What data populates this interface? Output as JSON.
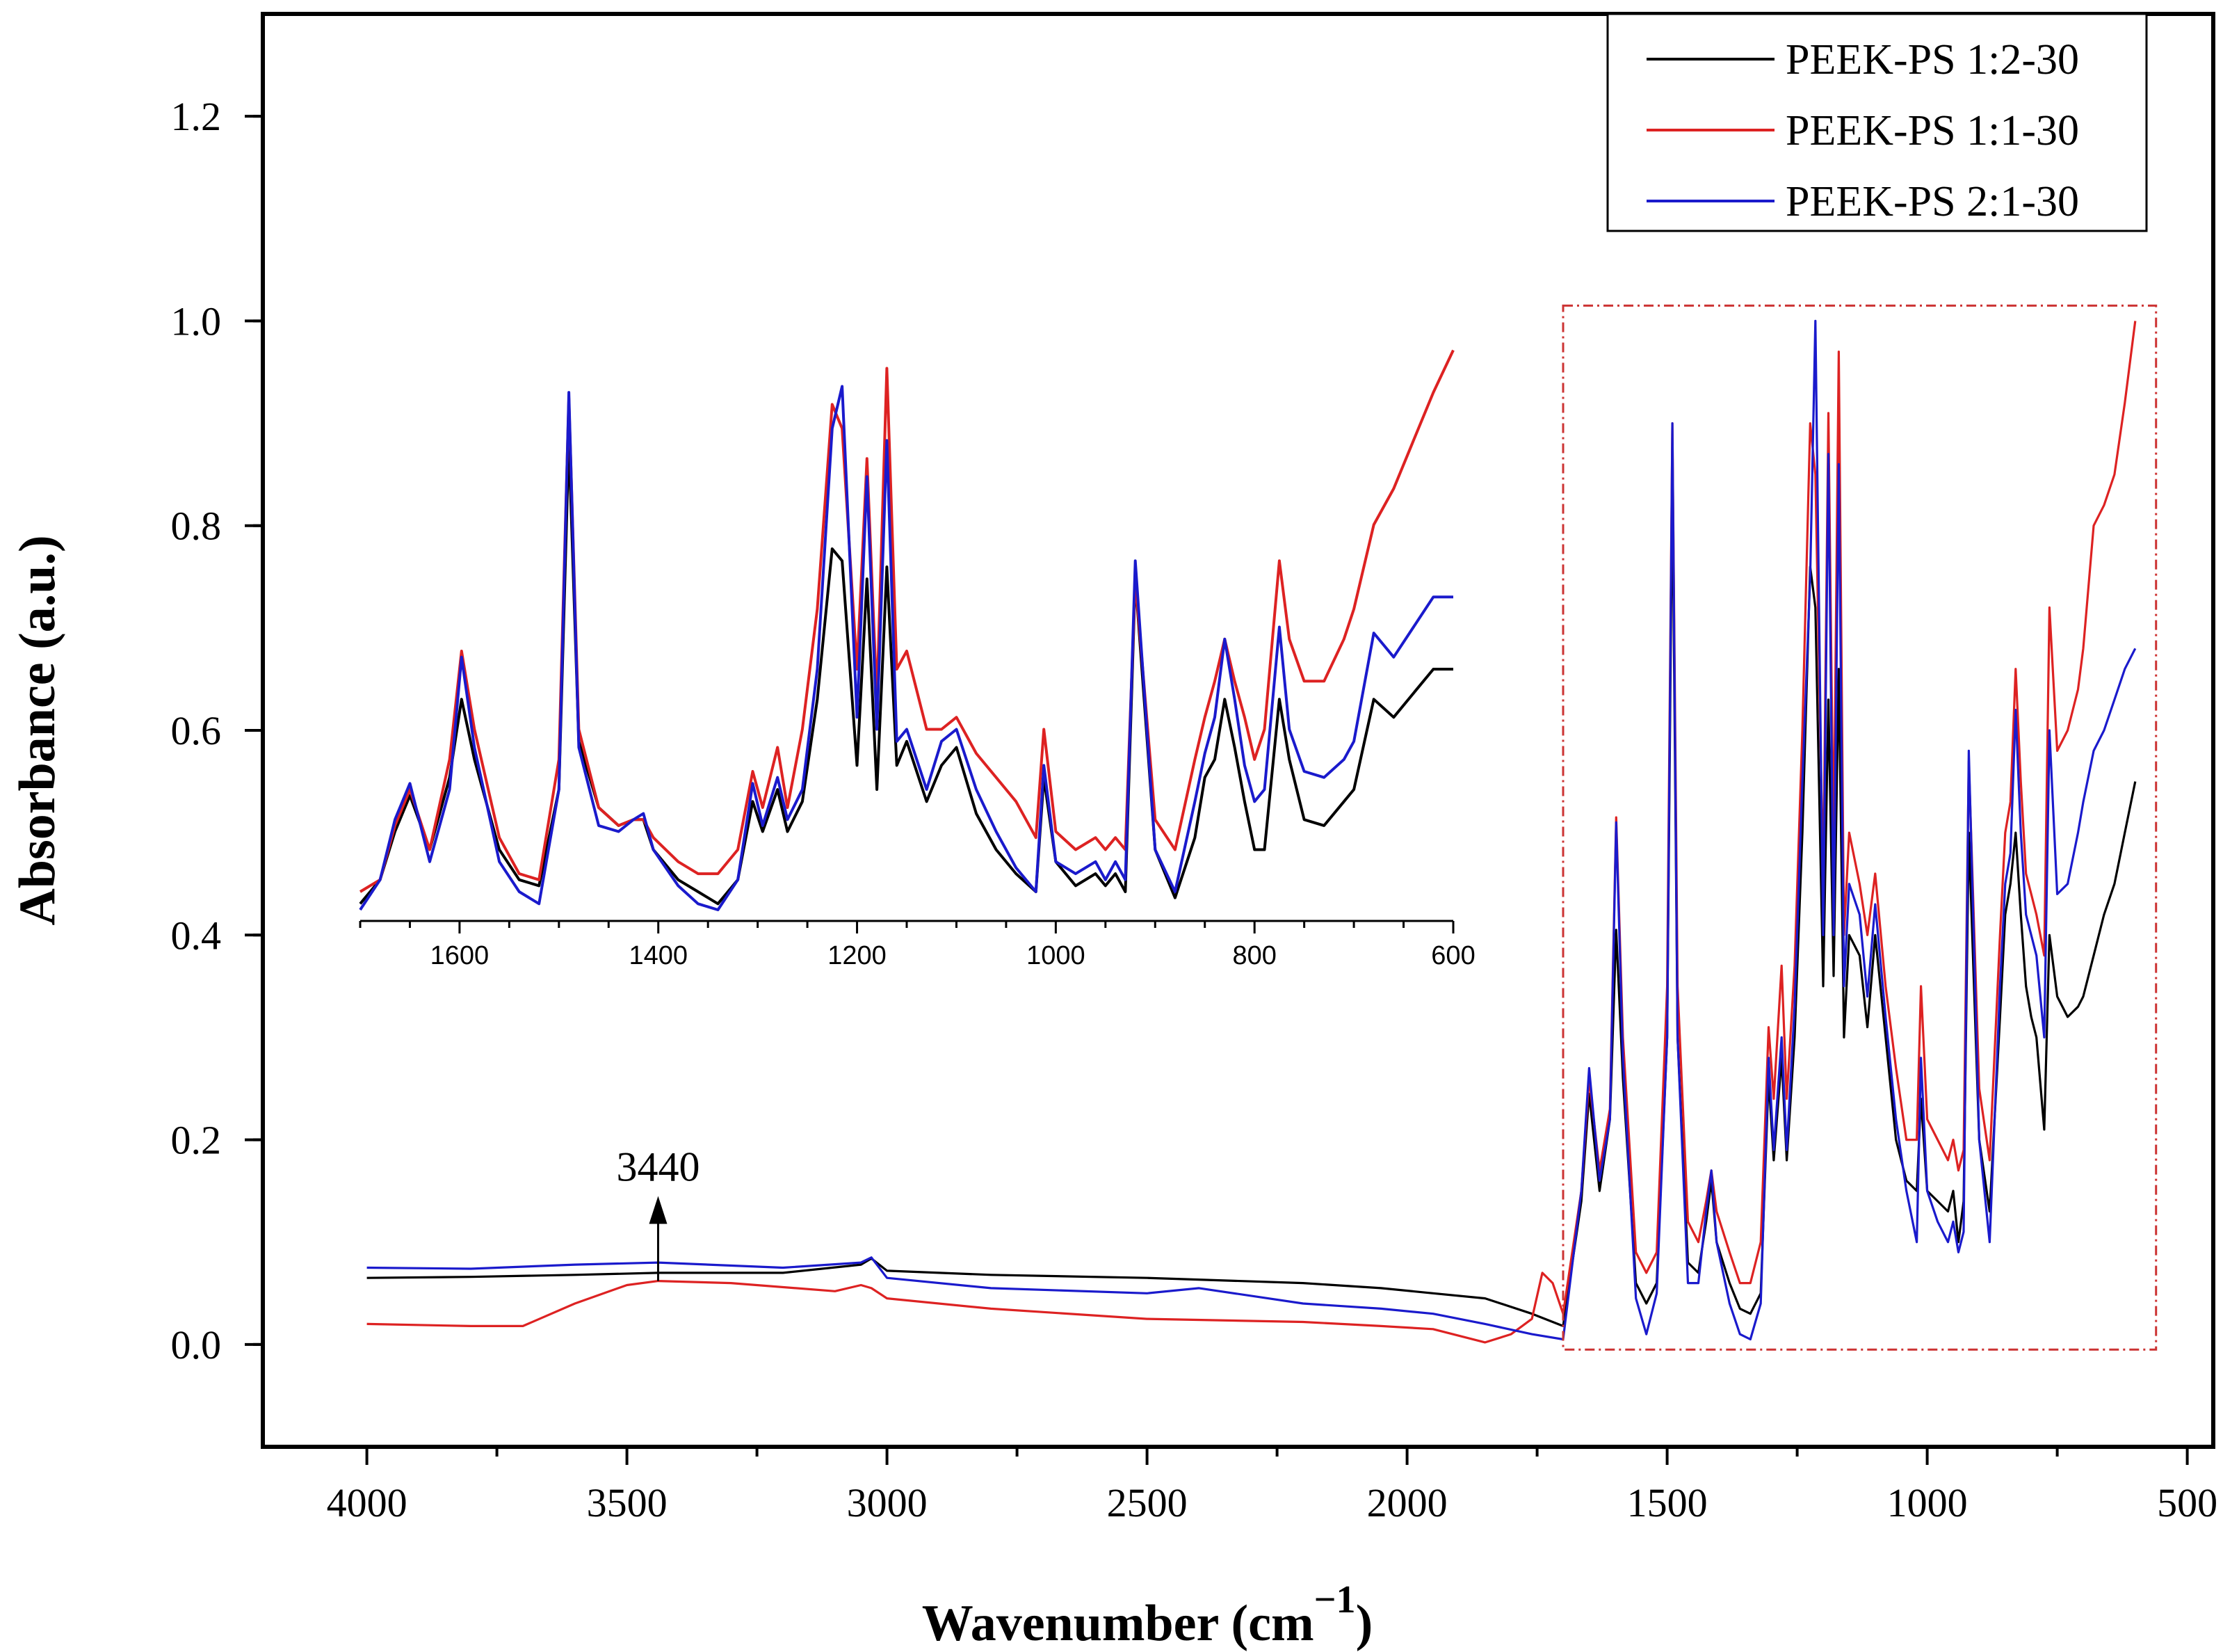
{
  "chart_data": {
    "type": "line",
    "title": "",
    "xlabel": "Wavenumber (cm",
    "xlabel_exp": "−1",
    "xlabel_close": ")",
    "ylabel": "Absorbance (a.u.)",
    "xlim": [
      4200,
      450
    ],
    "ylim": [
      -0.1,
      1.3
    ],
    "x_ticks": [
      4000,
      3500,
      3000,
      2500,
      2000,
      1500,
      1000,
      500
    ],
    "y_ticks": [
      0.0,
      0.2,
      0.4,
      0.6,
      0.8,
      1.0,
      1.2
    ],
    "x_tick_labels": [
      "4000",
      "3500",
      "3000",
      "2500",
      "2000",
      "1500",
      "1000",
      "500"
    ],
    "y_tick_labels": [
      "0.0",
      "0.2",
      "0.4",
      "0.6",
      "0.8",
      "1.0",
      "1.2"
    ],
    "legend_position": "top-right",
    "highlight_region": {
      "x": [
        1700,
        560
      ],
      "y": [
        -0.005,
        1.015
      ],
      "color": "#cc3333"
    },
    "annotation": {
      "label": "3440",
      "x": 3440,
      "y_from": 0.062,
      "y_to": 0.145
    },
    "series": [
      {
        "name": "PEEK-PS  1:2-30",
        "color": "#000000",
        "x": [
          4000,
          3800,
          3600,
          3440,
          3200,
          3050,
          3030,
          3000,
          2800,
          2500,
          2200,
          2050,
          1950,
          1850,
          1760,
          1700,
          1665,
          1650,
          1630,
          1610,
          1598,
          1585,
          1560,
          1540,
          1520,
          1500,
          1490,
          1480,
          1460,
          1440,
          1425,
          1415,
          1405,
          1380,
          1360,
          1340,
          1320,
          1305,
          1295,
          1280,
          1270,
          1255,
          1240,
          1225,
          1215,
          1200,
          1190,
          1180,
          1170,
          1160,
          1150,
          1130,
          1115,
          1100,
          1080,
          1060,
          1040,
          1020,
          1012,
          1000,
          980,
          960,
          950,
          940,
          930,
          920,
          900,
          880,
          860,
          850,
          840,
          830,
          820,
          810,
          800,
          790,
          775,
          765,
          750,
          730,
          710,
          700,
          680,
          660,
          640,
          620,
          600
        ],
        "y": [
          0.065,
          0.066,
          0.068,
          0.07,
          0.07,
          0.078,
          0.084,
          0.072,
          0.068,
          0.065,
          0.06,
          0.055,
          0.05,
          0.045,
          0.03,
          0.018,
          0.14,
          0.245,
          0.15,
          0.22,
          0.405,
          0.26,
          0.06,
          0.04,
          0.06,
          0.3,
          0.85,
          0.3,
          0.08,
          0.07,
          0.12,
          0.16,
          0.1,
          0.06,
          0.035,
          0.03,
          0.05,
          0.26,
          0.18,
          0.28,
          0.18,
          0.3,
          0.5,
          0.76,
          0.72,
          0.35,
          0.63,
          0.36,
          0.66,
          0.3,
          0.4,
          0.38,
          0.31,
          0.4,
          0.3,
          0.2,
          0.16,
          0.15,
          0.24,
          0.15,
          0.14,
          0.13,
          0.15,
          0.1,
          0.14,
          0.5,
          0.2,
          0.13,
          0.32,
          0.42,
          0.45,
          0.5,
          0.42,
          0.35,
          0.32,
          0.3,
          0.21,
          0.4,
          0.34,
          0.32,
          0.33,
          0.34,
          0.38,
          0.42,
          0.45,
          0.5,
          0.55
        ]
      },
      {
        "name": "PEEK-PS  1:1-30",
        "color": "#dd2222",
        "x": [
          4000,
          3800,
          3700,
          3600,
          3500,
          3440,
          3300,
          3100,
          3050,
          3030,
          3000,
          2800,
          2500,
          2200,
          2050,
          1950,
          1850,
          1800,
          1760,
          1740,
          1720,
          1700,
          1665,
          1650,
          1630,
          1610,
          1598,
          1585,
          1560,
          1540,
          1520,
          1500,
          1490,
          1480,
          1460,
          1440,
          1425,
          1415,
          1405,
          1380,
          1360,
          1340,
          1320,
          1305,
          1295,
          1280,
          1270,
          1255,
          1240,
          1225,
          1215,
          1200,
          1190,
          1180,
          1170,
          1160,
          1150,
          1130,
          1115,
          1100,
          1080,
          1060,
          1040,
          1020,
          1012,
          1000,
          980,
          960,
          950,
          940,
          930,
          920,
          900,
          880,
          860,
          850,
          840,
          830,
          820,
          810,
          800,
          790,
          775,
          765,
          750,
          730,
          710,
          700,
          680,
          660,
          640,
          620,
          600
        ],
        "y": [
          0.02,
          0.018,
          0.018,
          0.04,
          0.058,
          0.062,
          0.06,
          0.052,
          0.058,
          0.055,
          0.045,
          0.035,
          0.025,
          0.022,
          0.018,
          0.015,
          0.002,
          0.01,
          0.025,
          0.07,
          0.06,
          0.03,
          0.15,
          0.26,
          0.17,
          0.23,
          0.515,
          0.3,
          0.09,
          0.07,
          0.09,
          0.35,
          0.9,
          0.35,
          0.12,
          0.1,
          0.14,
          0.17,
          0.13,
          0.09,
          0.06,
          0.06,
          0.1,
          0.31,
          0.24,
          0.37,
          0.24,
          0.37,
          0.6,
          0.9,
          0.85,
          0.45,
          0.91,
          0.48,
          0.97,
          0.4,
          0.5,
          0.45,
          0.4,
          0.46,
          0.35,
          0.27,
          0.2,
          0.2,
          0.35,
          0.22,
          0.2,
          0.18,
          0.2,
          0.17,
          0.19,
          0.57,
          0.25,
          0.18,
          0.4,
          0.5,
          0.53,
          0.66,
          0.55,
          0.46,
          0.44,
          0.42,
          0.38,
          0.72,
          0.58,
          0.6,
          0.64,
          0.68,
          0.8,
          0.82,
          0.85,
          0.92,
          1.0
        ]
      },
      {
        "name": "PEEK-PS  2:1-30",
        "color": "#1a1acc",
        "x": [
          4000,
          3800,
          3600,
          3440,
          3200,
          3050,
          3030,
          3000,
          2800,
          2500,
          2400,
          2200,
          2050,
          1950,
          1850,
          1760,
          1700,
          1665,
          1650,
          1630,
          1610,
          1598,
          1585,
          1560,
          1540,
          1520,
          1500,
          1490,
          1480,
          1460,
          1440,
          1425,
          1415,
          1405,
          1380,
          1360,
          1340,
          1320,
          1305,
          1295,
          1280,
          1270,
          1255,
          1240,
          1225,
          1215,
          1200,
          1190,
          1180,
          1170,
          1160,
          1150,
          1130,
          1115,
          1100,
          1080,
          1060,
          1040,
          1020,
          1012,
          1000,
          980,
          960,
          950,
          940,
          930,
          920,
          900,
          880,
          860,
          850,
          840,
          830,
          820,
          810,
          800,
          790,
          775,
          765,
          750,
          730,
          710,
          700,
          680,
          660,
          640,
          620,
          600
        ],
        "y": [
          0.075,
          0.074,
          0.078,
          0.08,
          0.075,
          0.08,
          0.085,
          0.065,
          0.055,
          0.05,
          0.055,
          0.04,
          0.035,
          0.03,
          0.02,
          0.01,
          0.005,
          0.15,
          0.27,
          0.16,
          0.22,
          0.51,
          0.28,
          0.045,
          0.01,
          0.05,
          0.3,
          0.9,
          0.3,
          0.06,
          0.06,
          0.13,
          0.17,
          0.1,
          0.04,
          0.01,
          0.005,
          0.04,
          0.28,
          0.19,
          0.3,
          0.19,
          0.33,
          0.55,
          0.75,
          1.0,
          0.4,
          0.87,
          0.4,
          0.86,
          0.35,
          0.45,
          0.42,
          0.34,
          0.43,
          0.32,
          0.22,
          0.15,
          0.1,
          0.28,
          0.15,
          0.12,
          0.1,
          0.12,
          0.09,
          0.11,
          0.58,
          0.2,
          0.1,
          0.35,
          0.45,
          0.48,
          0.62,
          0.5,
          0.42,
          0.4,
          0.38,
          0.3,
          0.6,
          0.44,
          0.45,
          0.5,
          0.53,
          0.58,
          0.6,
          0.63,
          0.66,
          0.68
        ]
      }
    ],
    "inset": {
      "type": "line",
      "xlim": [
        1700,
        600
      ],
      "ylim": [
        0,
        1.2
      ],
      "x_ticks": [
        1600,
        1400,
        1200,
        1000,
        800,
        600
      ],
      "x_tick_labels": [
        "1600",
        "1400",
        "1200",
        "1000",
        "800",
        "600"
      ],
      "series": [
        {
          "name": "PEEK-PS  1:2-30",
          "color": "#000000",
          "x": [
            1700,
            1680,
            1665,
            1650,
            1630,
            1610,
            1598,
            1585,
            1560,
            1540,
            1520,
            1500,
            1490,
            1480,
            1460,
            1440,
            1425,
            1415,
            1405,
            1380,
            1360,
            1340,
            1320,
            1305,
            1295,
            1280,
            1270,
            1255,
            1240,
            1225,
            1215,
            1200,
            1190,
            1180,
            1170,
            1160,
            1150,
            1130,
            1115,
            1100,
            1080,
            1060,
            1040,
            1020,
            1012,
            1000,
            980,
            960,
            950,
            940,
            930,
            920,
            900,
            880,
            860,
            850,
            840,
            830,
            820,
            810,
            800,
            790,
            775,
            765,
            750,
            730,
            710,
            700,
            680,
            660,
            640,
            620,
            600
          ],
          "y": [
            0.01,
            0.05,
            0.13,
            0.19,
            0.1,
            0.22,
            0.35,
            0.25,
            0.1,
            0.05,
            0.04,
            0.2,
            0.78,
            0.28,
            0.17,
            0.14,
            0.15,
            0.15,
            0.1,
            0.05,
            0.03,
            0.01,
            0.05,
            0.18,
            0.13,
            0.2,
            0.13,
            0.18,
            0.35,
            0.6,
            0.58,
            0.24,
            0.55,
            0.2,
            0.57,
            0.24,
            0.28,
            0.18,
            0.24,
            0.27,
            0.16,
            0.1,
            0.06,
            0.03,
            0.22,
            0.08,
            0.04,
            0.06,
            0.04,
            0.06,
            0.03,
            0.55,
            0.1,
            0.02,
            0.12,
            0.22,
            0.25,
            0.35,
            0.27,
            0.18,
            0.1,
            0.1,
            0.35,
            0.25,
            0.15,
            0.14,
            0.18,
            0.2,
            0.35,
            0.32,
            0.36,
            0.4,
            0.4
          ]
        },
        {
          "name": "PEEK-PS  1:1-30",
          "color": "#dd2222",
          "x": [
            1700,
            1680,
            1665,
            1650,
            1630,
            1610,
            1598,
            1585,
            1560,
            1540,
            1520,
            1500,
            1490,
            1480,
            1460,
            1440,
            1425,
            1415,
            1405,
            1380,
            1360,
            1340,
            1320,
            1305,
            1295,
            1280,
            1270,
            1255,
            1240,
            1225,
            1215,
            1200,
            1190,
            1180,
            1170,
            1160,
            1150,
            1130,
            1115,
            1100,
            1080,
            1060,
            1040,
            1020,
            1012,
            1000,
            980,
            960,
            950,
            940,
            930,
            920,
            900,
            880,
            860,
            850,
            840,
            830,
            820,
            810,
            800,
            790,
            775,
            765,
            750,
            730,
            710,
            700,
            680,
            660,
            640,
            620,
            600
          ],
          "y": [
            0.03,
            0.05,
            0.14,
            0.2,
            0.1,
            0.25,
            0.43,
            0.3,
            0.12,
            0.06,
            0.05,
            0.25,
            0.85,
            0.3,
            0.17,
            0.14,
            0.15,
            0.15,
            0.12,
            0.08,
            0.06,
            0.06,
            0.1,
            0.23,
            0.17,
            0.27,
            0.17,
            0.3,
            0.5,
            0.84,
            0.8,
            0.4,
            0.75,
            0.35,
            0.9,
            0.4,
            0.43,
            0.3,
            0.3,
            0.32,
            0.26,
            0.22,
            0.18,
            0.12,
            0.3,
            0.13,
            0.1,
            0.12,
            0.1,
            0.12,
            0.1,
            0.55,
            0.15,
            0.1,
            0.25,
            0.32,
            0.38,
            0.45,
            0.38,
            0.32,
            0.25,
            0.3,
            0.58,
            0.45,
            0.38,
            0.38,
            0.45,
            0.5,
            0.64,
            0.7,
            0.78,
            0.86,
            0.93
          ]
        },
        {
          "name": "PEEK-PS  2:1-30",
          "color": "#1a1acc",
          "x": [
            1700,
            1680,
            1665,
            1650,
            1630,
            1610,
            1598,
            1585,
            1560,
            1540,
            1520,
            1500,
            1490,
            1480,
            1460,
            1440,
            1425,
            1415,
            1405,
            1380,
            1360,
            1340,
            1320,
            1305,
            1295,
            1280,
            1270,
            1255,
            1240,
            1225,
            1215,
            1200,
            1190,
            1180,
            1170,
            1160,
            1150,
            1130,
            1115,
            1100,
            1080,
            1060,
            1040,
            1020,
            1012,
            1000,
            980,
            960,
            950,
            940,
            930,
            920,
            900,
            880,
            860,
            850,
            840,
            830,
            820,
            810,
            800,
            790,
            775,
            765,
            750,
            730,
            710,
            700,
            680,
            660,
            640,
            620,
            600
          ],
          "y": [
            0.0,
            0.05,
            0.15,
            0.21,
            0.08,
            0.2,
            0.42,
            0.27,
            0.08,
            0.03,
            0.01,
            0.2,
            0.86,
            0.27,
            0.14,
            0.13,
            0.15,
            0.16,
            0.1,
            0.04,
            0.01,
            0.0,
            0.05,
            0.21,
            0.14,
            0.22,
            0.15,
            0.2,
            0.4,
            0.8,
            0.87,
            0.32,
            0.72,
            0.3,
            0.78,
            0.28,
            0.3,
            0.2,
            0.28,
            0.3,
            0.2,
            0.13,
            0.07,
            0.03,
            0.24,
            0.08,
            0.06,
            0.08,
            0.05,
            0.08,
            0.05,
            0.58,
            0.1,
            0.03,
            0.18,
            0.26,
            0.32,
            0.45,
            0.35,
            0.24,
            0.18,
            0.2,
            0.47,
            0.3,
            0.23,
            0.22,
            0.25,
            0.28,
            0.46,
            0.42,
            0.47,
            0.52,
            0.52
          ]
        }
      ]
    }
  }
}
